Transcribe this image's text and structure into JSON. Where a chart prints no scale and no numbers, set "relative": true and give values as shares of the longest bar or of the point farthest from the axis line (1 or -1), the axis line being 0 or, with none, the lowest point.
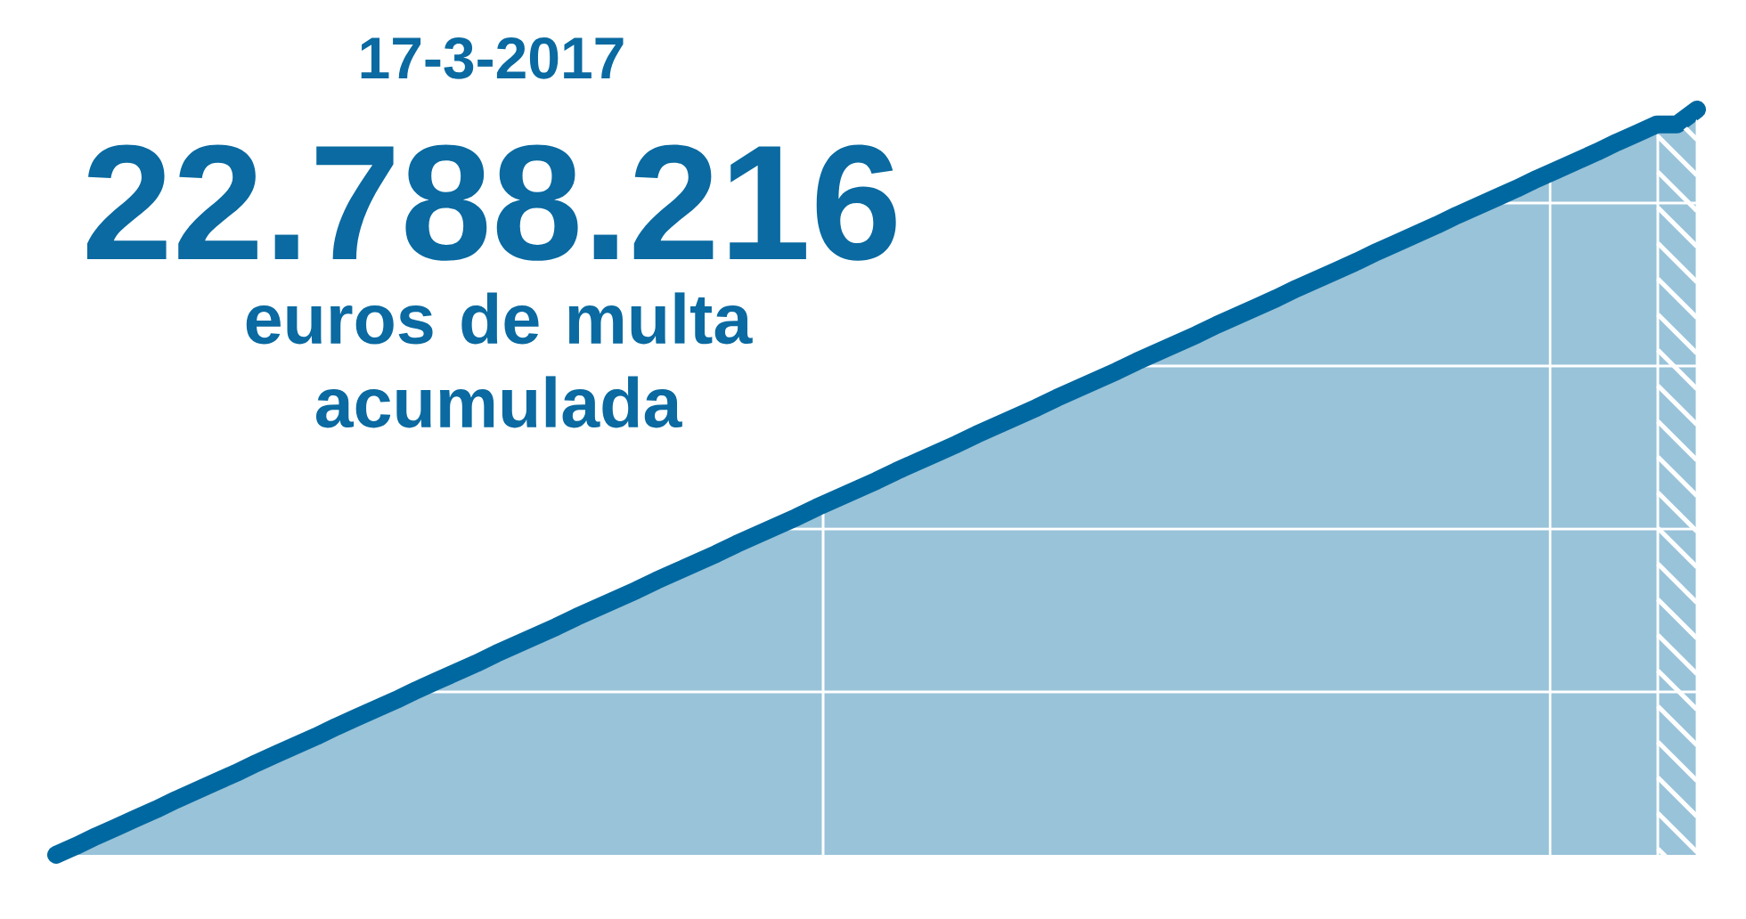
{
  "chart_data": {
    "type": "area",
    "title": "17-3-2017",
    "subtitle": "22.788.216",
    "annotations": [
      "euros de multa acumulada"
    ],
    "relative": true,
    "categories": [
      null,
      null,
      null,
      null,
      null,
      null,
      null,
      null,
      null,
      null,
      null,
      null,
      null,
      null,
      null,
      null,
      null,
      null,
      null,
      null,
      null,
      null,
      null,
      null,
      null,
      null,
      null,
      null,
      null,
      null,
      null,
      null,
      null,
      null,
      null,
      null,
      null,
      null,
      null,
      null,
      null,
      null,
      null,
      null,
      null,
      null,
      null,
      null,
      null,
      null,
      null,
      null,
      null,
      null,
      null,
      null,
      null,
      null,
      null,
      null,
      null,
      null,
      null,
      null,
      null,
      null,
      null,
      null,
      null,
      null,
      null,
      null,
      null,
      null,
      null,
      null,
      null,
      null,
      null,
      null,
      null,
      null,
      null
    ],
    "series": [
      {
        "color": "#0068a0",
        "values": [
          0,
          0.012,
          0.025,
          0.037,
          0.049,
          0.061,
          0.074,
          0.086,
          0.098,
          0.11,
          0.123,
          0.135,
          0.147,
          0.159,
          0.172,
          0.184,
          0.196,
          0.208,
          0.221,
          0.233,
          0.245,
          0.257,
          0.27,
          0.282,
          0.294,
          0.306,
          0.319,
          0.331,
          0.343,
          0.355,
          0.368,
          0.38,
          0.392,
          0.404,
          0.417,
          0.429,
          0.441,
          0.453,
          0.466,
          0.478,
          0.49,
          0.502,
          0.515,
          0.527,
          0.539,
          0.551,
          0.564,
          0.576,
          0.588,
          0.6,
          0.613,
          0.625,
          0.637,
          0.649,
          0.662,
          0.674,
          0.686,
          0.698,
          0.711,
          0.723,
          0.735,
          0.747,
          0.76,
          0.772,
          0.784,
          0.796,
          0.809,
          0.821,
          0.833,
          0.845,
          0.858,
          0.87,
          0.882,
          0.894,
          0.907,
          0.919,
          0.931,
          0.943,
          0.956,
          0.968,
          0.98,
          0.98,
          1
        ]
      }
    ],
    "grid": "y"
  }
}
